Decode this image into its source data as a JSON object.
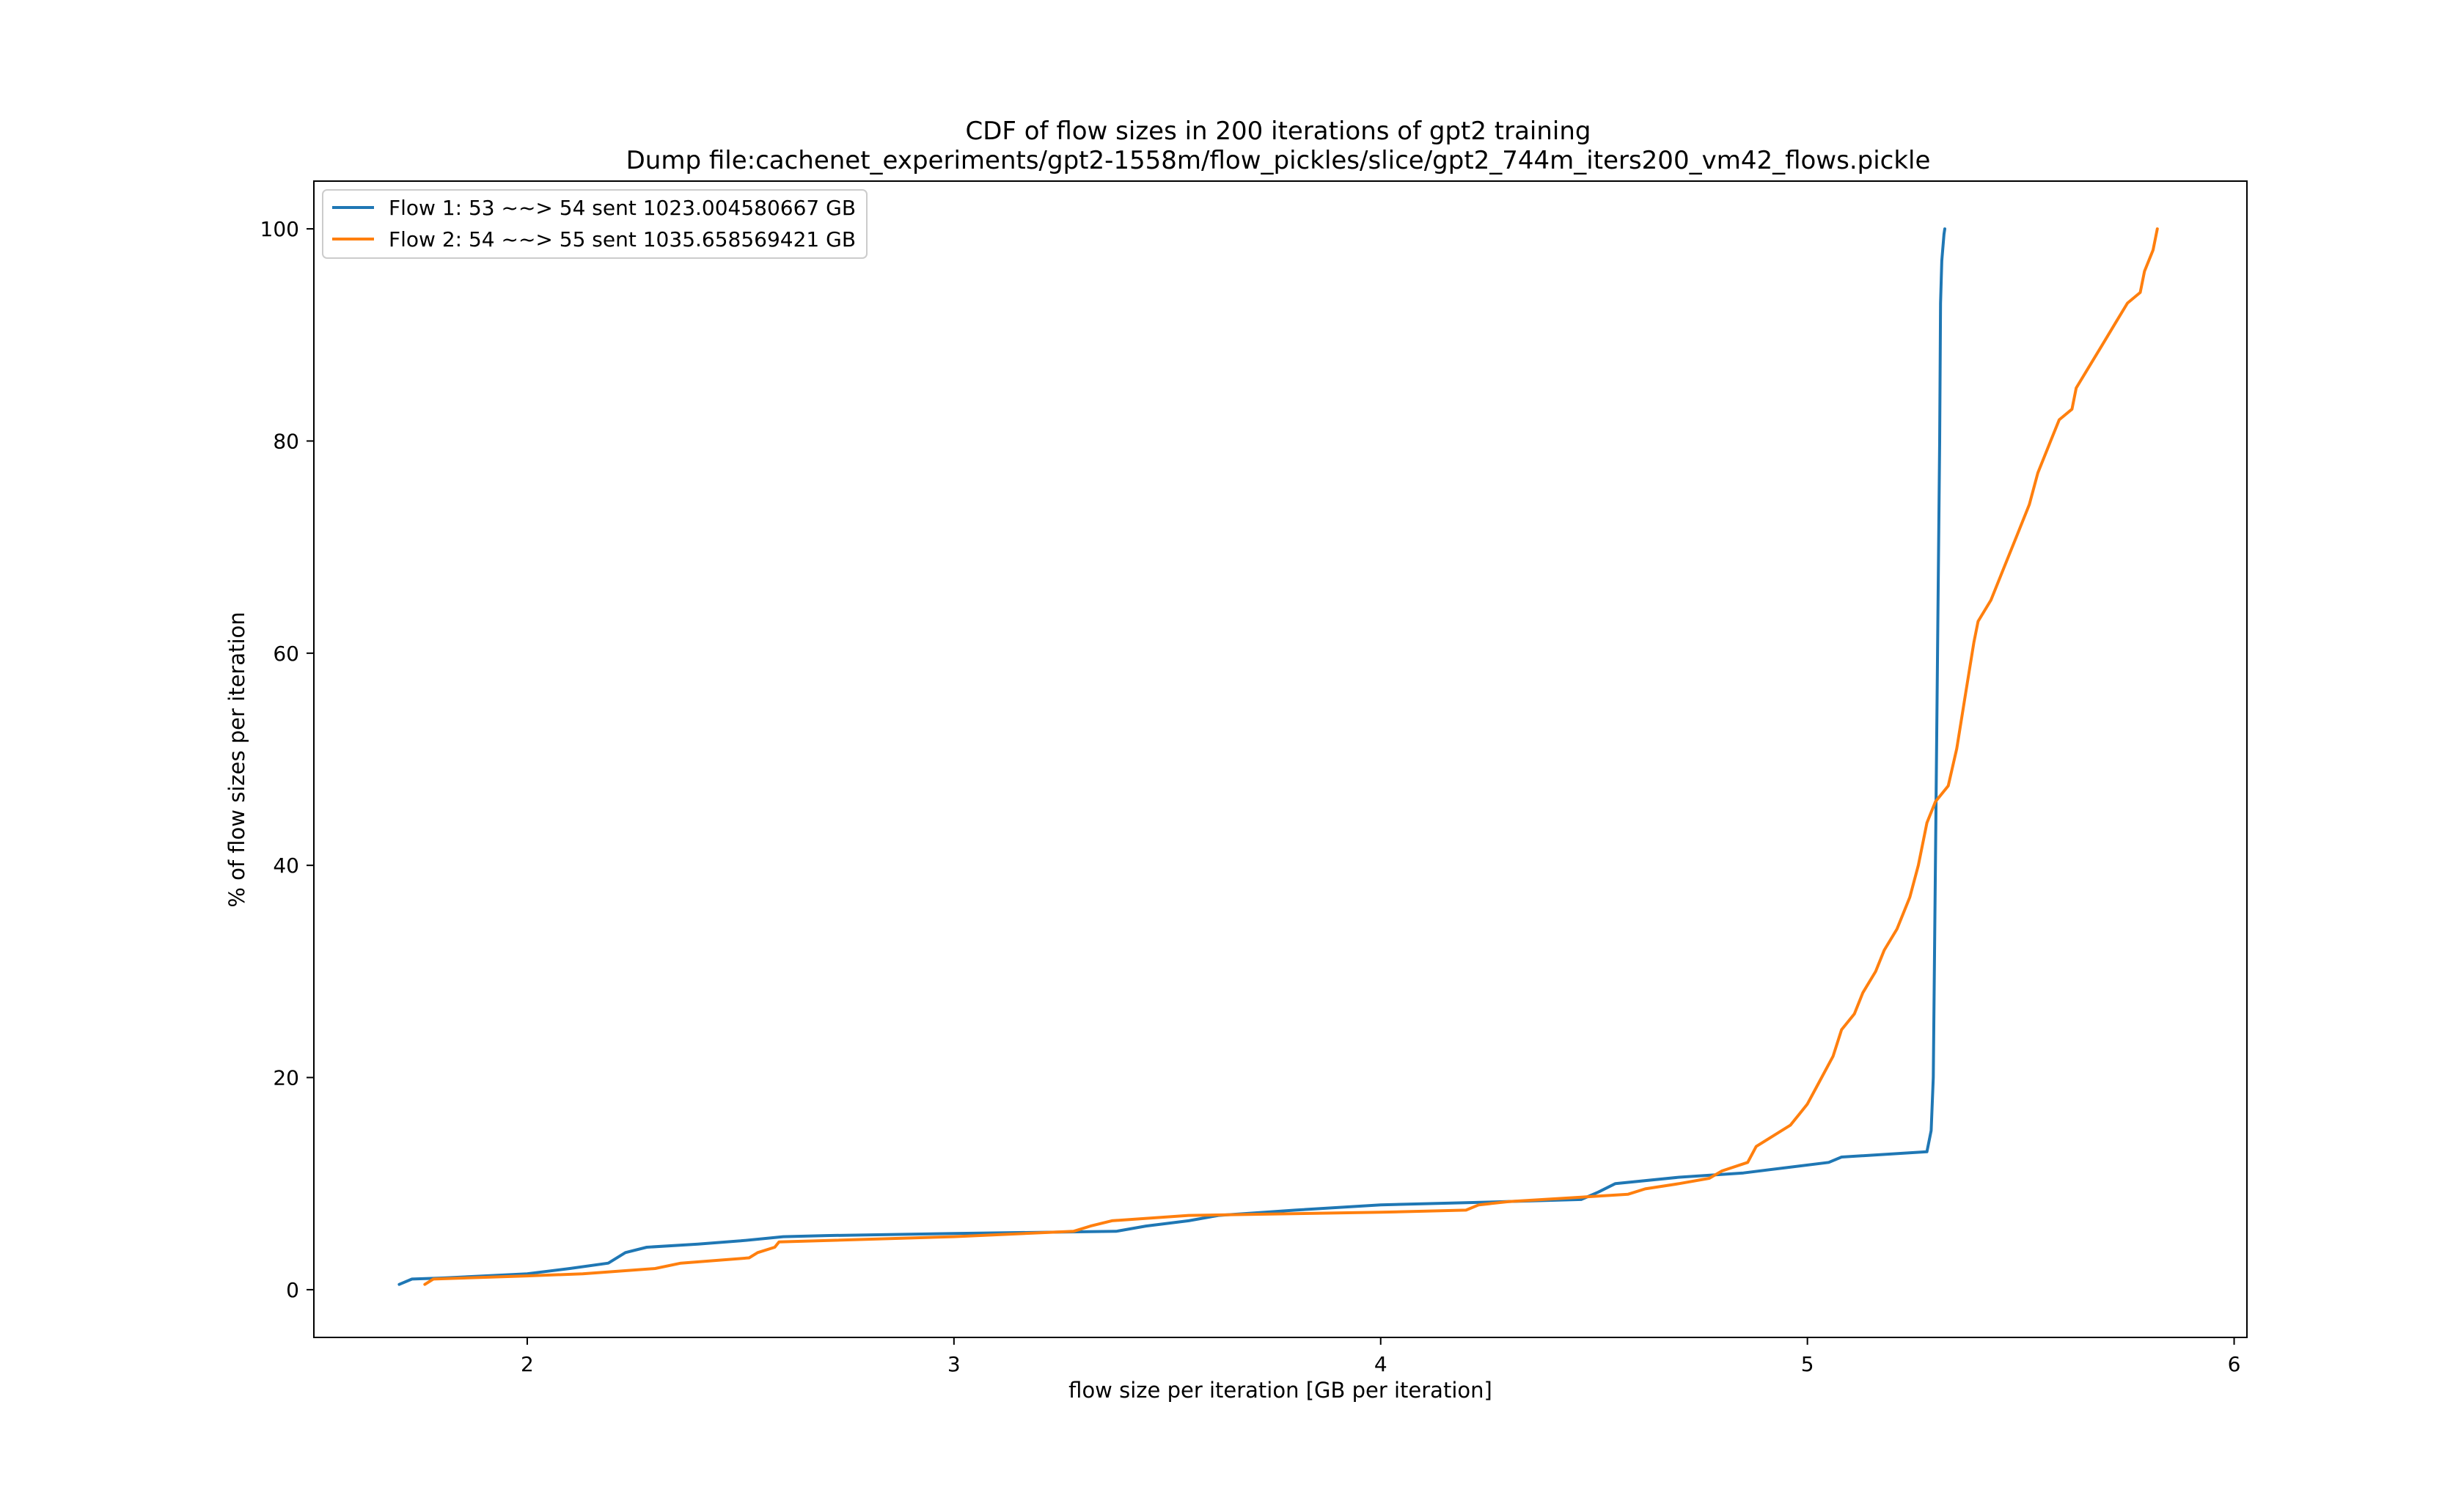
{
  "chart_data": {
    "type": "line",
    "title": "CDF of flow sizes in 200 iterations of gpt2 training",
    "subtitle": "Dump file:cachenet_experiments/gpt2-1558m/flow_pickles/slice/gpt2_744m_iters200_vm42_flows.pickle",
    "xlabel": "flow size per iteration [GB per iteration]",
    "ylabel": "% of flow sizes per iteration",
    "xlim": [
      1.5,
      6.03
    ],
    "ylim": [
      -4.5,
      104.5
    ],
    "xticks": [
      2,
      3,
      4,
      5,
      6
    ],
    "yticks": [
      0,
      20,
      40,
      60,
      80,
      100
    ],
    "grid": false,
    "legend_placement": "upper-left",
    "series": [
      {
        "name": "Flow 1: 53 ~~> 54 sent 1023.004580667 GB",
        "color": "#1f77b4",
        "points": [
          [
            1.7,
            0.5
          ],
          [
            1.73,
            1.0
          ],
          [
            1.8,
            1.1
          ],
          [
            1.9,
            1.3
          ],
          [
            2.0,
            1.5
          ],
          [
            2.1,
            2.0
          ],
          [
            2.19,
            2.5
          ],
          [
            2.23,
            3.5
          ],
          [
            2.28,
            4.0
          ],
          [
            2.4,
            4.3
          ],
          [
            2.5,
            4.6
          ],
          [
            2.6,
            5.0
          ],
          [
            2.7,
            5.1
          ],
          [
            3.0,
            5.3
          ],
          [
            3.38,
            5.5
          ],
          [
            3.45,
            6.0
          ],
          [
            3.55,
            6.5
          ],
          [
            3.62,
            7.0
          ],
          [
            3.8,
            7.5
          ],
          [
            4.0,
            8.0
          ],
          [
            4.2,
            8.2
          ],
          [
            4.47,
            8.5
          ],
          [
            4.51,
            9.2
          ],
          [
            4.55,
            10.0
          ],
          [
            4.7,
            10.6
          ],
          [
            4.85,
            11.0
          ],
          [
            4.95,
            11.5
          ],
          [
            5.05,
            12.0
          ],
          [
            5.08,
            12.5
          ],
          [
            5.28,
            13.0
          ],
          [
            5.29,
            15.0
          ],
          [
            5.295,
            20.0
          ],
          [
            5.3,
            40.0
          ],
          [
            5.305,
            60.0
          ],
          [
            5.31,
            80.0
          ],
          [
            5.312,
            93.0
          ],
          [
            5.315,
            97.0
          ],
          [
            5.32,
            99.5
          ],
          [
            5.322,
            100.0
          ]
        ]
      },
      {
        "name": "Flow 2: 54 ~~> 55 sent 1035.658569421 GB",
        "color": "#ff7f0e",
        "points": [
          [
            1.76,
            0.5
          ],
          [
            1.78,
            1.0
          ],
          [
            2.0,
            1.3
          ],
          [
            2.13,
            1.5
          ],
          [
            2.3,
            2.0
          ],
          [
            2.36,
            2.5
          ],
          [
            2.52,
            3.0
          ],
          [
            2.54,
            3.5
          ],
          [
            2.58,
            4.0
          ],
          [
            2.59,
            4.5
          ],
          [
            3.0,
            5.0
          ],
          [
            3.28,
            5.5
          ],
          [
            3.32,
            6.0
          ],
          [
            3.37,
            6.5
          ],
          [
            3.55,
            7.0
          ],
          [
            4.0,
            7.3
          ],
          [
            4.2,
            7.5
          ],
          [
            4.23,
            8.0
          ],
          [
            4.3,
            8.3
          ],
          [
            4.5,
            8.8
          ],
          [
            4.58,
            9.0
          ],
          [
            4.62,
            9.5
          ],
          [
            4.7,
            10.0
          ],
          [
            4.77,
            10.5
          ],
          [
            4.8,
            11.2
          ],
          [
            4.86,
            12.0
          ],
          [
            4.88,
            13.5
          ],
          [
            4.92,
            14.5
          ],
          [
            4.96,
            15.5
          ],
          [
            4.98,
            16.5
          ],
          [
            5.0,
            17.5
          ],
          [
            5.02,
            19.0
          ],
          [
            5.06,
            22.0
          ],
          [
            5.08,
            24.5
          ],
          [
            5.11,
            26.0
          ],
          [
            5.13,
            28.0
          ],
          [
            5.16,
            30.0
          ],
          [
            5.18,
            32.0
          ],
          [
            5.21,
            34.0
          ],
          [
            5.24,
            37.0
          ],
          [
            5.26,
            40.0
          ],
          [
            5.28,
            44.0
          ],
          [
            5.3,
            46.0
          ],
          [
            5.33,
            47.5
          ],
          [
            5.35,
            51.0
          ],
          [
            5.37,
            56.0
          ],
          [
            5.39,
            61.0
          ],
          [
            5.4,
            63.0
          ],
          [
            5.43,
            65.0
          ],
          [
            5.46,
            68.0
          ],
          [
            5.49,
            71.0
          ],
          [
            5.52,
            74.0
          ],
          [
            5.54,
            77.0
          ],
          [
            5.57,
            80.0
          ],
          [
            5.59,
            82.0
          ],
          [
            5.62,
            83.0
          ],
          [
            5.63,
            85.0
          ],
          [
            5.66,
            87.0
          ],
          [
            5.69,
            89.0
          ],
          [
            5.72,
            91.0
          ],
          [
            5.75,
            93.0
          ],
          [
            5.78,
            94.0
          ],
          [
            5.79,
            96.0
          ],
          [
            5.81,
            98.0
          ],
          [
            5.82,
            100.0
          ]
        ]
      }
    ]
  }
}
